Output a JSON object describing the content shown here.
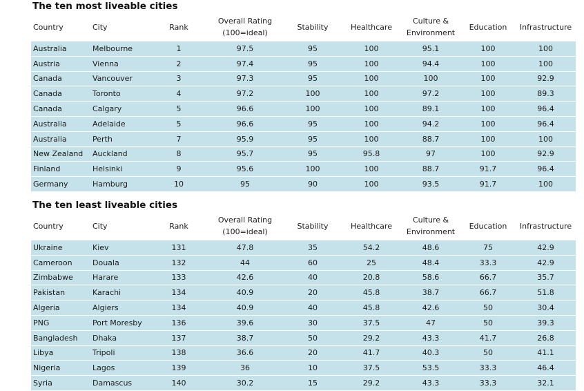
{
  "headers": [
    "Country",
    "City",
    "Rank",
    "Overall Rating\n(100=ideal)",
    "Stability",
    "Healthcare",
    "Culture &\nEnvironment",
    "Education",
    "Infrastructure"
  ],
  "most": {
    "title": "The ten most liveable cities",
    "rows": [
      [
        "Australia",
        "Melbourne",
        "1",
        "97.5",
        "95",
        "100",
        "95.1",
        "100",
        "100"
      ],
      [
        "Austria",
        "Vienna",
        "2",
        "97.4",
        "95",
        "100",
        "94.4",
        "100",
        "100"
      ],
      [
        "Canada",
        "Vancouver",
        "3",
        "97.3",
        "95",
        "100",
        "100",
        "100",
        "92.9"
      ],
      [
        "Canada",
        "Toronto",
        "4",
        "97.2",
        "100",
        "100",
        "97.2",
        "100",
        "89.3"
      ],
      [
        "Canada",
        "Calgary",
        "5",
        "96.6",
        "100",
        "100",
        "89.1",
        "100",
        "96.4"
      ],
      [
        "Australia",
        "Adelaide",
        "5",
        "96.6",
        "95",
        "100",
        "94.2",
        "100",
        "96.4"
      ],
      [
        "Australia",
        "Perth",
        "7",
        "95.9",
        "95",
        "100",
        "88.7",
        "100",
        "100"
      ],
      [
        "New Zealand",
        "Auckland",
        "8",
        "95.7",
        "95",
        "95.8",
        "97",
        "100",
        "92.9"
      ],
      [
        "Finland",
        "Helsinki",
        "9",
        "95.6",
        "100",
        "100",
        "88.7",
        "91.7",
        "96.4"
      ],
      [
        "Germany",
        "Hamburg",
        "10",
        "95",
        "90",
        "100",
        "93.5",
        "91.7",
        "100"
      ]
    ]
  },
  "least": {
    "title": "The ten least liveable cities",
    "rows": [
      [
        "Ukraine",
        "Kiev",
        "131",
        "47.8",
        "35",
        "54.2",
        "48.6",
        "75",
        "42.9"
      ],
      [
        "Cameroon",
        "Douala",
        "132",
        "44",
        "60",
        "25",
        "48.4",
        "33.3",
        "42.9"
      ],
      [
        "Zimbabwe",
        "Harare",
        "133",
        "42.6",
        "40",
        "20.8",
        "58.6",
        "66.7",
        "35.7"
      ],
      [
        "Pakistan",
        "Karachi",
        "134",
        "40.9",
        "20",
        "45.8",
        "38.7",
        "66.7",
        "51.8"
      ],
      [
        "Algeria",
        "Algiers",
        "134",
        "40.9",
        "40",
        "45.8",
        "42.6",
        "50",
        "30.4"
      ],
      [
        "PNG",
        "Port Moresby",
        "136",
        "39.6",
        "30",
        "37.5",
        "47",
        "50",
        "39.3"
      ],
      [
        "Bangladesh",
        "Dhaka",
        "137",
        "38.7",
        "50",
        "29.2",
        "43.3",
        "41.7",
        "26.8"
      ],
      [
        "Libya",
        "Tripoli",
        "138",
        "36.6",
        "20",
        "41.7",
        "40.3",
        "50",
        "41.1"
      ],
      [
        "Nigeria",
        "Lagos",
        "139",
        "36",
        "10",
        "37.5",
        "53.5",
        "33.3",
        "46.4"
      ],
      [
        "Syria",
        "Damascus",
        "140",
        "30.2",
        "15",
        "29.2",
        "43.3",
        "33.3",
        "32.1"
      ]
    ]
  }
}
